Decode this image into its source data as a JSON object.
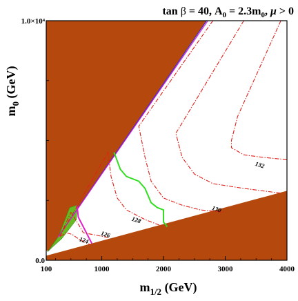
{
  "chart_data": {
    "type": "line",
    "title_parts": {
      "tan": "tan ",
      "beta": "β",
      "eq1": " = 40, A",
      "a_sub": "0",
      "eq2": " = 2.3m",
      "m_sub": "0",
      "comma": ", ",
      "mu": "μ",
      "cond": " > 0"
    },
    "xlabel_parts": {
      "main": "m",
      "sub": "1/2",
      "rest": " (GeV)"
    },
    "ylabel_parts": {
      "main": "m",
      "sub": "0",
      "rest": " (GeV)"
    },
    "xlim": [
      100,
      4000
    ],
    "ylim": [
      0,
      10000
    ],
    "x_ticks": [
      {
        "value": 100,
        "label": "100"
      },
      {
        "value": 1000,
        "label": "1000"
      },
      {
        "value": 2000,
        "label": "2000"
      },
      {
        "value": 3000,
        "label": "3000"
      },
      {
        "value": 4000,
        "label": "4000"
      }
    ],
    "y_ticks": [
      {
        "value": 0,
        "label": "0.0"
      },
      {
        "value": 10000,
        "label": "1.0×10⁴"
      }
    ],
    "colors": {
      "excluded": "#b5490d",
      "higgs": "#e0201a",
      "green": "#33dd22",
      "magenta": "#e020c8",
      "blue": "#2a2adc",
      "band": "#66bb22"
    },
    "regions": [
      {
        "name": "no-ewsb-region",
        "points": [
          [
            100,
            10000
          ],
          [
            100,
            400
          ],
          [
            140,
            400
          ],
          [
            300,
            1000
          ],
          [
            2700,
            10000
          ]
        ]
      },
      {
        "name": "stau-lsp-region",
        "points": [
          [
            100,
            0
          ],
          [
            4000,
            0
          ],
          [
            4000,
            2900
          ],
          [
            100,
            190
          ]
        ]
      }
    ],
    "series": [
      {
        "name": "dark-matter-band",
        "style": "fill",
        "points": [
          [
            120,
            350
          ],
          [
            300,
            1000
          ],
          [
            480,
            2200
          ],
          [
            600,
            2300
          ],
          [
            590,
            1700
          ],
          [
            470,
            1300
          ],
          [
            350,
            900
          ],
          [
            200,
            550
          ]
        ]
      },
      {
        "name": "boundary-blue",
        "style": "solid",
        "points": [
          [
            300,
            1000
          ],
          [
            2700,
            10000
          ]
        ]
      },
      {
        "name": "boundary-purple",
        "style": "solid",
        "points": [
          [
            290,
            950
          ],
          [
            2720,
            10000
          ]
        ]
      },
      {
        "name": "green-contour",
        "style": "solid",
        "points": [
          [
            1200,
            4500
          ],
          [
            1300,
            3800
          ],
          [
            1400,
            3500
          ],
          [
            1600,
            3300
          ],
          [
            1700,
            3000
          ],
          [
            1750,
            2700
          ],
          [
            1800,
            2400
          ],
          [
            1900,
            2200
          ],
          [
            2000,
            2100
          ],
          [
            2000,
            1600
          ],
          [
            2060,
            1400
          ]
        ]
      },
      {
        "name": "magenta-contour",
        "style": "solid",
        "points": [
          [
            600,
            2300
          ],
          [
            620,
            1800
          ],
          [
            680,
            1500
          ],
          [
            740,
            1200
          ],
          [
            800,
            900
          ],
          [
            840,
            700
          ]
        ]
      },
      {
        "name": "higgs-contour-124",
        "level": "124",
        "style": "dashdot",
        "points": [
          [
            330,
            1000
          ],
          [
            420,
            1150
          ],
          [
            520,
            1080
          ],
          [
            620,
            900
          ],
          [
            720,
            760
          ],
          [
            820,
            650
          ]
        ]
      },
      {
        "name": "higgs-contour-126",
        "level": "126",
        "style": "dashdot",
        "points": [
          [
            320,
            1000
          ],
          [
            500,
            2000
          ],
          [
            600,
            1600
          ],
          [
            700,
            1150
          ],
          [
            1100,
            950
          ]
        ]
      },
      {
        "name": "higgs-contour-128",
        "level": "128",
        "style": "dashdot",
        "points": [
          [
            320,
            1000
          ],
          [
            1100,
            4500
          ],
          [
            1150,
            3500
          ],
          [
            1250,
            2600
          ],
          [
            1400,
            2100
          ],
          [
            1700,
            1700
          ],
          [
            2000,
            1400
          ]
        ]
      },
      {
        "name": "higgs-contour-130",
        "level": "130",
        "style": "dashdot",
        "points": [
          [
            2800,
            10000
          ],
          [
            1600,
            5600
          ],
          [
            1700,
            4300
          ],
          [
            1800,
            3300
          ],
          [
            2000,
            2600
          ],
          [
            2300,
            2300
          ],
          [
            2600,
            2100
          ],
          [
            3000,
            2000
          ]
        ]
      },
      {
        "name": "higgs-contour-130b",
        "style": "dashdot",
        "points": [
          [
            3300,
            10000
          ],
          [
            2200,
            5300
          ],
          [
            2300,
            4300
          ],
          [
            2500,
            3600
          ],
          [
            2800,
            3200
          ],
          [
            3300,
            3000
          ],
          [
            3900,
            2800
          ]
        ]
      },
      {
        "name": "higgs-contour-132",
        "level": "132",
        "style": "dashdot",
        "points": [
          [
            3900,
            10000
          ],
          [
            3200,
            6000
          ],
          [
            3100,
            5000
          ],
          [
            3100,
            4700
          ],
          [
            3300,
            4400
          ],
          [
            3600,
            4300
          ],
          [
            4000,
            4200
          ]
        ]
      }
    ],
    "annotations": [
      {
        "text": "124",
        "x": 700,
        "y": 750
      },
      {
        "text": "126",
        "x": 1050,
        "y": 1000
      },
      {
        "text": "128",
        "x": 1550,
        "y": 1600
      },
      {
        "text": "130",
        "x": 2850,
        "y": 2050
      },
      {
        "text": "132",
        "x": 3550,
        "y": 3900
      }
    ]
  }
}
